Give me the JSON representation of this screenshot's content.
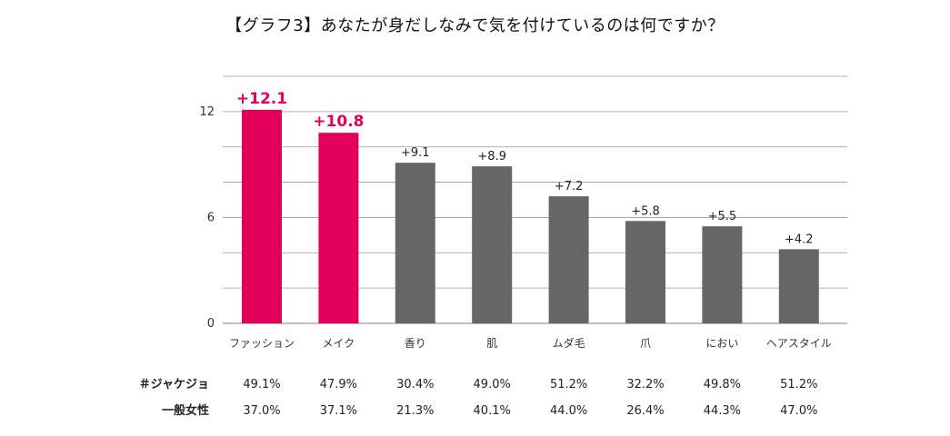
{
  "title": "【グラフ3】あなたが身だしなみで気を付けているのは何ですか？",
  "chart_data": {
    "type": "bar",
    "categories": [
      "ファッション",
      "メイク",
      "香り",
      "肌",
      "ムダ毛",
      "爪",
      "におい",
      "ヘアスタイル"
    ],
    "values": [
      12.1,
      10.8,
      9.1,
      8.9,
      7.2,
      5.8,
      5.5,
      4.2
    ],
    "data_labels": [
      "+12.1",
      "+10.8",
      "+9.1",
      "+8.9",
      "+7.2",
      "+5.8",
      "+5.5",
      "+4.2"
    ],
    "highlighted": [
      true,
      true,
      false,
      false,
      false,
      false,
      false,
      false
    ],
    "yticks": [
      0,
      6,
      12
    ],
    "ylim": [
      0,
      14
    ],
    "grid": true,
    "colors": {
      "highlight": "#e2005a",
      "normal": "#666666",
      "grid": "#999999"
    },
    "title": "【グラフ3】あなたが身だしなみで気を付けているのは何ですか？",
    "xlabel": "",
    "ylabel": ""
  },
  "table": {
    "rows": [
      {
        "label": "＃ジャケジョ",
        "values": [
          "49.1%",
          "47.9%",
          "30.4%",
          "49.0%",
          "51.2%",
          "32.2%",
          "49.8%",
          "51.2%"
        ]
      },
      {
        "label": "一般女性",
        "values": [
          "37.0%",
          "37.1%",
          "21.3%",
          "40.1%",
          "44.0%",
          "26.4%",
          "44.3%",
          "47.0%"
        ]
      }
    ]
  }
}
